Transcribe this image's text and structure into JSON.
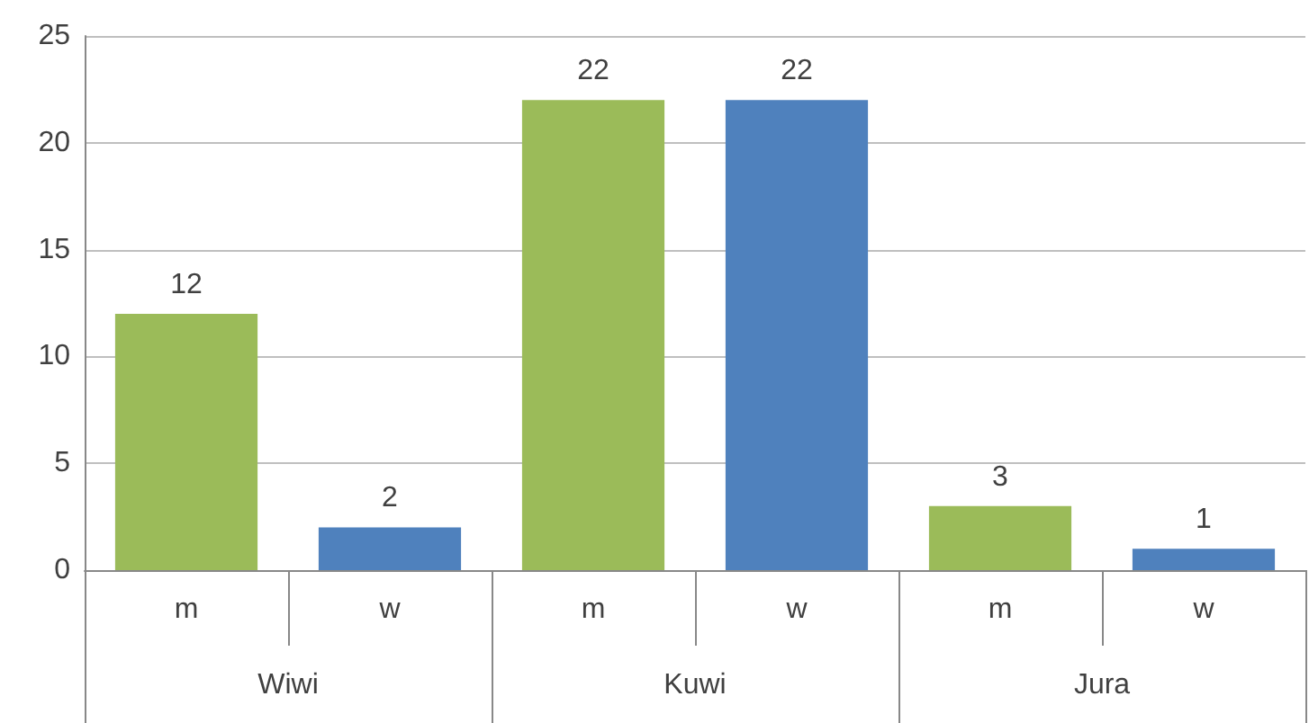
{
  "chart_data": {
    "type": "bar",
    "categories": [
      "m",
      "w",
      "m",
      "w",
      "m",
      "w"
    ],
    "values": [
      12,
      2,
      22,
      22,
      3,
      1
    ],
    "colors": [
      "#9bbb59",
      "#4f81bd",
      "#9bbb59",
      "#4f81bd",
      "#9bbb59",
      "#4f81bd"
    ],
    "annotations": [
      "Wiwi",
      "Kuwi",
      "Jura"
    ],
    "ylim": [
      0,
      25
    ],
    "yticks": [
      0,
      5,
      10,
      15,
      20,
      25
    ],
    "grid": "y",
    "data_labels": true
  }
}
